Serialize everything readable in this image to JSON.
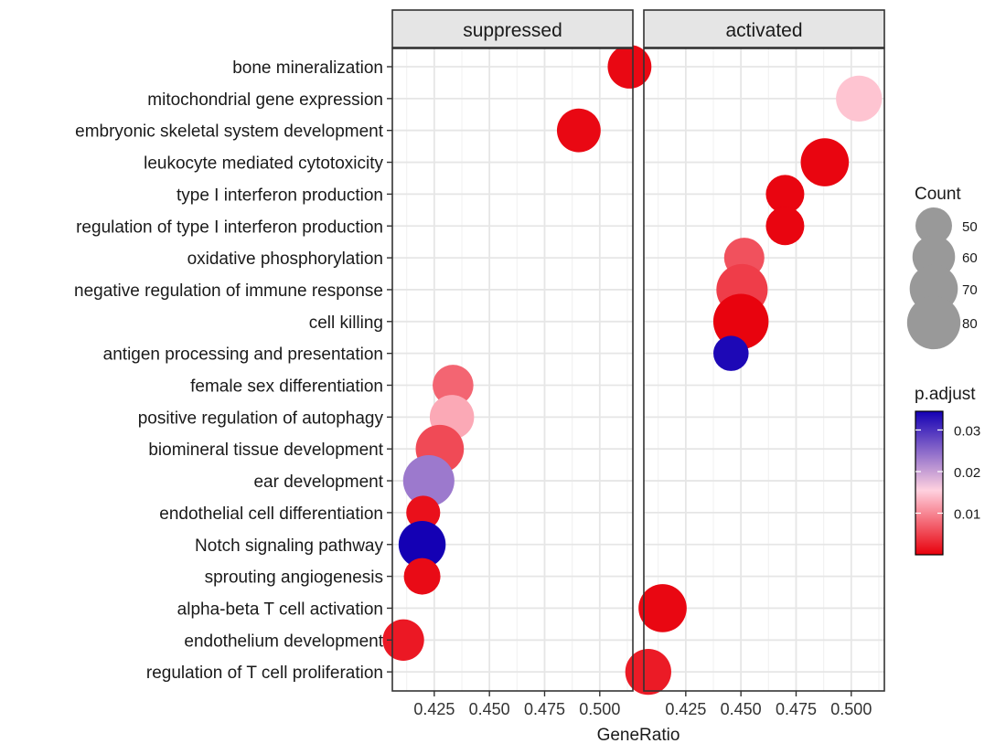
{
  "chart_data": {
    "type": "scatter",
    "panels": [
      "suppressed",
      "activated"
    ],
    "xlabel": "GeneRatio",
    "ylabel": "",
    "x_ticks": [
      0.425,
      0.45,
      0.475,
      0.5
    ],
    "x_tick_labels": [
      "0.425",
      "0.450",
      "0.475",
      "0.500"
    ],
    "xlim": [
      0.406,
      0.515
    ],
    "terms": [
      "bone mineralization",
      "mitochondrial gene expression",
      "embryonic skeletal system development",
      "leukocyte mediated cytotoxicity",
      "type I interferon production",
      "regulation of type I interferon production",
      "oxidative phosphorylation",
      "negative regulation of immune response",
      "cell killing",
      "antigen processing and presentation",
      "female sex differentiation",
      "positive regulation of autophagy",
      "biomineral tissue development",
      "ear development",
      "endothelial cell differentiation",
      "Notch signaling pathway",
      "sprouting angiogenesis",
      "alpha-beta T cell activation",
      "endothelium development",
      "regulation of T cell proliferation"
    ],
    "points": [
      {
        "panel": "suppressed",
        "term": "bone mineralization",
        "x": 0.5135,
        "count": 62,
        "p_adjust": 0.0006
      },
      {
        "panel": "suppressed",
        "term": "embryonic skeletal system development",
        "x": 0.4905,
        "count": 62,
        "p_adjust": 0.0006
      },
      {
        "panel": "suppressed",
        "term": "female sex differentiation",
        "x": 0.4335,
        "count": 57,
        "p_adjust": 0.0075
      },
      {
        "panel": "suppressed",
        "term": "positive regulation of autophagy",
        "x": 0.433,
        "count": 63,
        "p_adjust": 0.0125
      },
      {
        "panel": "suppressed",
        "term": "biomineral tissue development",
        "x": 0.4275,
        "count": 70,
        "p_adjust": 0.0055
      },
      {
        "panel": "suppressed",
        "term": "ear development",
        "x": 0.4225,
        "count": 76,
        "p_adjust": 0.0235
      },
      {
        "panel": "suppressed",
        "term": "endothelial cell differentiation",
        "x": 0.42,
        "count": 46,
        "p_adjust": 0.0012
      },
      {
        "panel": "suppressed",
        "term": "Notch signaling pathway",
        "x": 0.4195,
        "count": 68,
        "p_adjust": 0.0355
      },
      {
        "panel": "suppressed",
        "term": "sprouting angiogenesis",
        "x": 0.4195,
        "count": 50,
        "p_adjust": 0.0008
      },
      {
        "panel": "suppressed",
        "term": "endothelium development",
        "x": 0.411,
        "count": 58,
        "p_adjust": 0.0018
      },
      {
        "panel": "activated",
        "term": "mitochondrial gene expression",
        "x": 0.5035,
        "count": 66,
        "p_adjust": 0.0145
      },
      {
        "panel": "activated",
        "term": "leukocyte mediated cytotoxicity",
        "x": 0.488,
        "count": 70,
        "p_adjust": 0.0004
      },
      {
        "panel": "activated",
        "term": "type I interferon production",
        "x": 0.47,
        "count": 53,
        "p_adjust": 0.0004
      },
      {
        "panel": "activated",
        "term": "regulation of type I interferon production",
        "x": 0.47,
        "count": 53,
        "p_adjust": 0.0004
      },
      {
        "panel": "activated",
        "term": "oxidative phosphorylation",
        "x": 0.4515,
        "count": 56,
        "p_adjust": 0.006
      },
      {
        "panel": "activated",
        "term": "negative regulation of immune response",
        "x": 0.4505,
        "count": 76,
        "p_adjust": 0.0045
      },
      {
        "panel": "activated",
        "term": "cell killing",
        "x": 0.45,
        "count": 84,
        "p_adjust": 0.0002
      },
      {
        "panel": "activated",
        "term": "antigen processing and presentation",
        "x": 0.4455,
        "count": 48,
        "p_adjust": 0.0338
      },
      {
        "panel": "activated",
        "term": "alpha-beta T cell activation",
        "x": 0.4145,
        "count": 70,
        "p_adjust": 0.0005
      },
      {
        "panel": "activated",
        "term": "regulation of T cell proliferation",
        "x": 0.408,
        "count": 66,
        "p_adjust": 0.002
      }
    ],
    "size_legend": {
      "title": "Count",
      "values": [
        50,
        60,
        70,
        80
      ],
      "labels": [
        "50",
        "60",
        "70",
        "80"
      ]
    },
    "color_legend": {
      "title": "p.adjust",
      "range": [
        0.0,
        0.0345
      ],
      "ticks": [
        0.01,
        0.02,
        0.03
      ],
      "tick_labels": [
        "0.01",
        "0.02",
        "0.03"
      ],
      "colors": {
        "low": "#e8000b",
        "mid": "#ffd1df",
        "high": "#1400b4"
      },
      "mid_value": 0.0155
    },
    "grid": true,
    "legend_placement": "right",
    "point_size_color": "#999999"
  }
}
